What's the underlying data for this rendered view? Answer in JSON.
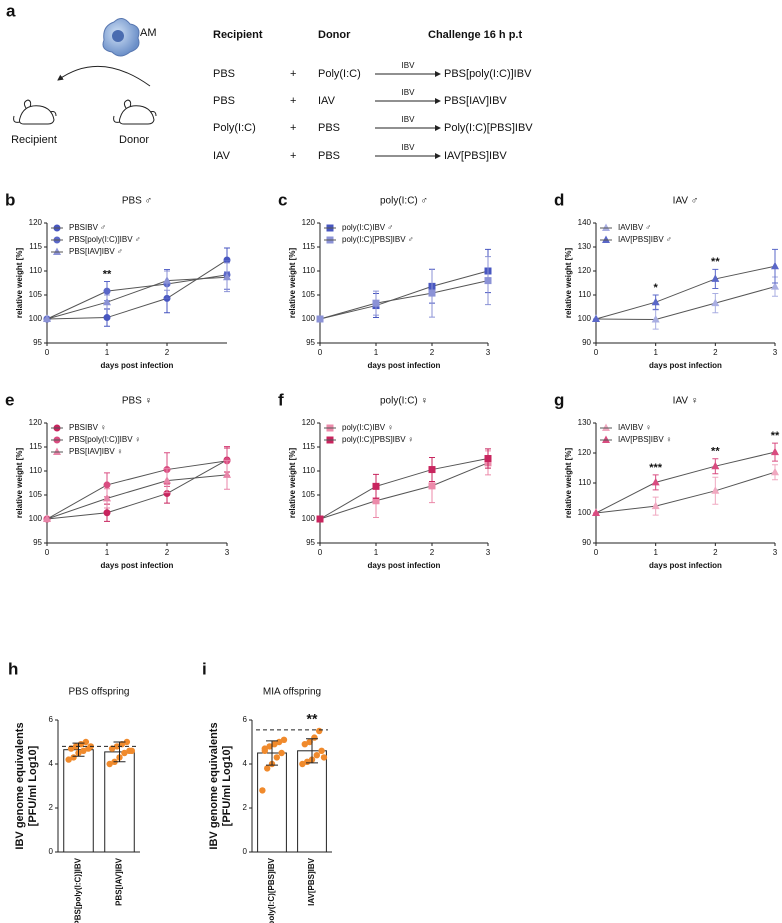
{
  "figure_a": {
    "panel": "a",
    "icon_label": "AM",
    "mouse_labels": [
      "Recipient",
      "Donor"
    ],
    "headers": [
      "Recipient",
      "Donor",
      "Challenge 16 h p.t"
    ],
    "rows": [
      [
        "PBS",
        "+",
        "Poly(I:C)",
        "IBV",
        "PBS[poly(I:C)]IBV"
      ],
      [
        "PBS",
        "+",
        "IAV",
        "IBV",
        "PBS[IAV]IBV"
      ],
      [
        "Poly(I:C)",
        "+",
        "PBS",
        "IBV",
        "Poly(I:C)[PBS]IBV"
      ],
      [
        "IAV",
        "+",
        "PBS",
        "IBV",
        "IAV[PBS]IBV"
      ]
    ]
  },
  "chart_data": [
    {
      "type": "line",
      "panel": "b",
      "title": "PBS ♂",
      "x": [
        0,
        1,
        2,
        3
      ],
      "xlim": [
        0,
        3
      ],
      "xticks": [
        0,
        1,
        2
      ],
      "ylim": [
        95,
        120
      ],
      "yticks": [
        95,
        100,
        105,
        110,
        115,
        120
      ],
      "xlabel": "days post infection",
      "ylabel": "relative weight [%]",
      "series": [
        {
          "name": "PBSIBV ♂",
          "color": "#4756c0",
          "marker": "circle",
          "values": [
            100,
            100.3,
            104.3,
            112.3
          ],
          "errors": [
            0,
            1.8,
            3,
            2.5
          ]
        },
        {
          "name": "PBS[poly(I:C)]IBV ♂",
          "color": "#5a67c8",
          "marker": "circle",
          "values": [
            100,
            105.8,
            107.3,
            109.2
          ],
          "errors": [
            0,
            2,
            3,
            3
          ]
        },
        {
          "name": "PBS[IAV]IBV ♂",
          "color": "#8b92d6",
          "marker": "triangle",
          "values": [
            100,
            103.5,
            108,
            108.7
          ],
          "errors": [
            0,
            1.5,
            2,
            3
          ]
        }
      ],
      "annotations": [
        {
          "x": 1,
          "text": "**"
        }
      ]
    },
    {
      "type": "line",
      "panel": "c",
      "title": "poly(I:C) ♂",
      "x": [
        0,
        1,
        2,
        3
      ],
      "xlim": [
        0,
        3
      ],
      "xticks": [
        0,
        1,
        2,
        3
      ],
      "ylim": [
        95,
        120
      ],
      "yticks": [
        95,
        100,
        105,
        110,
        115,
        120
      ],
      "xlabel": "days post infection",
      "ylabel": "relative weight [%]",
      "series": [
        {
          "name": "poly(I:C)IBV ♂",
          "color": "#4756c0",
          "marker": "square",
          "values": [
            100,
            102.8,
            106.8,
            110
          ],
          "errors": [
            0,
            2.5,
            3.5,
            4.5
          ]
        },
        {
          "name": "poly(I:C)[PBS]IBV ♂",
          "color": "#8b92d6",
          "marker": "square",
          "values": [
            100,
            103.3,
            105.4,
            108
          ],
          "errors": [
            0,
            2.5,
            5,
            5
          ]
        }
      ],
      "annotations": []
    },
    {
      "type": "line",
      "panel": "d",
      "title": "IAV ♂",
      "x": [
        0,
        1,
        2,
        3
      ],
      "xlim": [
        0,
        3
      ],
      "xticks": [
        0,
        1,
        2,
        3
      ],
      "ylim": [
        90,
        140
      ],
      "yticks": [
        90,
        100,
        110,
        120,
        130,
        140
      ],
      "xlabel": "days post infection",
      "ylabel": "relative weight [%]",
      "series": [
        {
          "name": "IAVIBV ♂",
          "color": "#a9aee2",
          "marker": "triangle",
          "values": [
            100,
            99.8,
            106.6,
            113.5
          ],
          "errors": [
            0,
            4,
            4,
            4
          ]
        },
        {
          "name": "IAV[PBS]IBV ♂",
          "color": "#5a67c8",
          "marker": "triangle",
          "values": [
            100,
            107,
            116.7,
            122
          ],
          "errors": [
            0,
            3,
            4,
            7
          ]
        }
      ],
      "annotations": [
        {
          "x": 1,
          "text": "*"
        },
        {
          "x": 2,
          "text": "**"
        }
      ]
    },
    {
      "type": "line",
      "panel": "e",
      "title": "PBS ♀",
      "x": [
        0,
        1,
        2,
        3
      ],
      "xlim": [
        0,
        3
      ],
      "xticks": [
        0,
        1,
        2,
        3
      ],
      "ylim": [
        95,
        120
      ],
      "yticks": [
        95,
        100,
        105,
        110,
        115,
        120
      ],
      "xlabel": "days post infection",
      "ylabel": "relative weight [%]",
      "series": [
        {
          "name": "PBSIBV ♀",
          "color": "#c8245e",
          "marker": "circle",
          "values": [
            100,
            101.3,
            105.3,
            112.3
          ],
          "errors": [
            0,
            1.8,
            2,
            2.5
          ]
        },
        {
          "name": "PBS[poly(I:C)]IBV ♀",
          "color": "#d94c80",
          "marker": "circle",
          "values": [
            100,
            107.1,
            110.3,
            112.1
          ],
          "errors": [
            0,
            2.5,
            3.5,
            3
          ]
        },
        {
          "name": "PBS[IAV]IBV ♀",
          "color": "#e884a8",
          "marker": "triangle",
          "values": [
            100,
            104.3,
            108,
            109.2
          ],
          "errors": [
            0,
            2,
            2.5,
            3
          ]
        }
      ],
      "annotations": []
    },
    {
      "type": "line",
      "panel": "f",
      "title": "poly(I:C) ♀",
      "x": [
        0,
        1,
        2,
        3
      ],
      "xlim": [
        0,
        3
      ],
      "xticks": [
        0,
        1,
        2,
        3
      ],
      "ylim": [
        95,
        120
      ],
      "yticks": [
        95,
        100,
        105,
        110,
        115,
        120
      ],
      "xlabel": "days post infection",
      "ylabel": "relative weight [%]",
      "series": [
        {
          "name": "poly(I:C)IBV ♀",
          "color": "#ec8aaa",
          "marker": "square",
          "values": [
            100,
            103.8,
            106.9,
            111.7
          ],
          "errors": [
            0,
            3.5,
            3.5,
            2.5
          ]
        },
        {
          "name": "poly(I:C)[PBS]IBV ♀",
          "color": "#c8245e",
          "marker": "square",
          "values": [
            100,
            106.8,
            110.3,
            112.6
          ],
          "errors": [
            0,
            2.5,
            2.5,
            2
          ]
        }
      ],
      "annotations": []
    },
    {
      "type": "line",
      "panel": "g",
      "title": "IAV ♀",
      "x": [
        0,
        1,
        2,
        3
      ],
      "xlim": [
        0,
        3
      ],
      "xticks": [
        0,
        1,
        2,
        3
      ],
      "ylim": [
        90,
        130
      ],
      "yticks": [
        90,
        100,
        110,
        120,
        130
      ],
      "xlabel": "days post infection",
      "ylabel": "relative weight [%]",
      "series": [
        {
          "name": "IAVIBV ♀",
          "color": "#f0a8c0",
          "marker": "triangle",
          "values": [
            100,
            102.3,
            107.4,
            113.6
          ],
          "errors": [
            0,
            3,
            4.5,
            2.5
          ]
        },
        {
          "name": "IAV[PBS]IBV ♀",
          "color": "#d94c80",
          "marker": "triangle",
          "values": [
            100,
            110.2,
            115.6,
            120.3
          ],
          "errors": [
            0,
            2.5,
            2.5,
            3
          ]
        }
      ],
      "annotations": [
        {
          "x": 1,
          "text": "***"
        },
        {
          "x": 2,
          "text": "**"
        },
        {
          "x": 3,
          "text": "**"
        }
      ]
    },
    {
      "type": "bar",
      "panel": "h",
      "title": "PBS offspring",
      "categories": [
        "PBS[poly(I:C)]IBV",
        "PBS[IAV]IBV"
      ],
      "values": [
        4.65,
        4.55
      ],
      "errors": [
        0.3,
        0.45
      ],
      "points": [
        [
          4.2,
          4.3,
          4.5,
          4.6,
          4.7,
          4.7,
          4.8,
          4.9,
          5.0,
          4.8
        ],
        [
          4.0,
          4.1,
          4.3,
          4.5,
          4.6,
          4.7,
          4.8,
          4.9,
          5.0,
          4.6
        ]
      ],
      "color": "#ffffff",
      "point_color": "#f08a2c",
      "ylim": [
        0,
        6
      ],
      "yticks": [
        0,
        2,
        4,
        6
      ],
      "ylabel": [
        "IBV genome equivalents",
        "[PFU/ml Log10]"
      ],
      "reference_line": 4.8,
      "annotations": []
    },
    {
      "type": "bar",
      "panel": "i",
      "title": "MIA offspring",
      "categories": [
        "poly(I:C)[PBS]IBV",
        "IAV[PBS]IBV"
      ],
      "values": [
        4.5,
        4.6
      ],
      "errors": [
        0.55,
        0.55
      ],
      "points": [
        [
          2.8,
          3.8,
          4.0,
          4.3,
          4.5,
          4.7,
          4.8,
          4.9,
          5.0,
          5.1,
          4.6
        ],
        [
          4.0,
          4.1,
          4.2,
          4.4,
          4.6,
          4.9,
          5.0,
          5.2,
          5.5,
          4.3
        ]
      ],
      "color": "#ffffff",
      "point_color": "#f08a2c",
      "ylim": [
        0,
        6
      ],
      "yticks": [
        0,
        2,
        4,
        6
      ],
      "ylabel": [
        "IBV genome equivalents",
        "[PFU/ml Log10]"
      ],
      "reference_line": 5.55,
      "annotations": [
        {
          "text": "**"
        }
      ]
    }
  ]
}
